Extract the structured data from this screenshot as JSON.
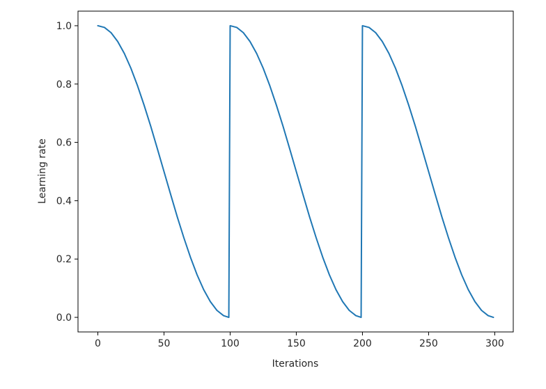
{
  "chart_data": {
    "type": "line",
    "title": "",
    "xlabel": "Iterations",
    "ylabel": "Learning rate",
    "xlim": [
      -15,
      314
    ],
    "ylim": [
      -0.05,
      1.05
    ],
    "xticks": [
      0,
      50,
      100,
      150,
      200,
      250,
      300
    ],
    "yticks": [
      0.0,
      0.2,
      0.4,
      0.6,
      0.8,
      1.0
    ],
    "xtick_labels": [
      "0",
      "50",
      "100",
      "150",
      "200",
      "250",
      "300"
    ],
    "ytick_labels": [
      "0.0",
      "0.2",
      "0.4",
      "0.6",
      "0.8",
      "1.0"
    ],
    "grid": false,
    "series": [
      {
        "color": "#1f77b4",
        "x": [
          0,
          5,
          10,
          15,
          20,
          25,
          30,
          35,
          40,
          45,
          50,
          55,
          60,
          65,
          70,
          75,
          80,
          85,
          90,
          95,
          99,
          100,
          105,
          110,
          115,
          120,
          125,
          130,
          135,
          140,
          145,
          150,
          155,
          160,
          165,
          170,
          175,
          180,
          185,
          190,
          195,
          199,
          200,
          205,
          210,
          215,
          220,
          225,
          230,
          235,
          240,
          245,
          250,
          255,
          260,
          265,
          270,
          275,
          280,
          285,
          290,
          295,
          299
        ],
        "y": [
          1.0,
          0.994,
          0.976,
          0.946,
          0.905,
          0.854,
          0.794,
          0.727,
          0.655,
          0.578,
          0.5,
          0.422,
          0.345,
          0.273,
          0.206,
          0.146,
          0.095,
          0.054,
          0.024,
          0.006,
          0.0,
          1.0,
          0.994,
          0.976,
          0.946,
          0.905,
          0.854,
          0.794,
          0.727,
          0.655,
          0.578,
          0.5,
          0.422,
          0.345,
          0.273,
          0.206,
          0.146,
          0.095,
          0.054,
          0.024,
          0.006,
          0.0,
          1.0,
          0.994,
          0.976,
          0.946,
          0.905,
          0.854,
          0.794,
          0.727,
          0.655,
          0.578,
          0.5,
          0.422,
          0.345,
          0.273,
          0.206,
          0.146,
          0.095,
          0.054,
          0.024,
          0.006,
          0.0
        ]
      }
    ]
  }
}
